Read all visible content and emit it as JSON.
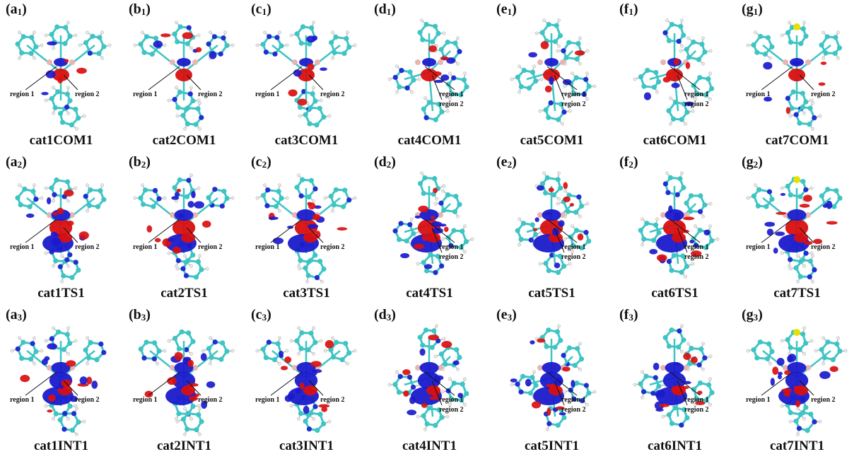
{
  "panels": [
    {
      "letter": "a",
      "sub": "1",
      "caption": "cat1COM1",
      "regions": [
        "region 1",
        "region 2"
      ]
    },
    {
      "letter": "b",
      "sub": "1",
      "caption": "cat2COM1",
      "regions": [
        "region 1",
        "region 2"
      ]
    },
    {
      "letter": "c",
      "sub": "1",
      "caption": "cat3COM1",
      "regions": [
        "region 1",
        "region 2"
      ]
    },
    {
      "letter": "d",
      "sub": "1",
      "caption": "cat4COM1",
      "regions": [
        "region 1",
        "region 2"
      ]
    },
    {
      "letter": "e",
      "sub": "1",
      "caption": "cat5COM1",
      "regions": [
        "region 1",
        "region 2"
      ]
    },
    {
      "letter": "f",
      "sub": "1",
      "caption": "cat6COM1",
      "regions": [
        "region 1",
        "region 2"
      ]
    },
    {
      "letter": "g",
      "sub": "1",
      "caption": "cat7COM1",
      "regions": [
        "region 1",
        "region 2"
      ]
    },
    {
      "letter": "a",
      "sub": "2",
      "caption": "cat1TS1",
      "regions": [
        "region 1",
        "region 2"
      ]
    },
    {
      "letter": "b",
      "sub": "2",
      "caption": "cat2TS1",
      "regions": [
        "region 1",
        "region 2"
      ]
    },
    {
      "letter": "c",
      "sub": "2",
      "caption": "cat3TS1",
      "regions": [
        "region 1",
        "region 2"
      ]
    },
    {
      "letter": "d",
      "sub": "2",
      "caption": "cat4TS1",
      "regions": [
        "region 1",
        "region 2"
      ]
    },
    {
      "letter": "e",
      "sub": "2",
      "caption": "cat5TS1",
      "regions": [
        "region 1",
        "region 2"
      ]
    },
    {
      "letter": "f",
      "sub": "2",
      "caption": "cat6TS1",
      "regions": [
        "region 1",
        "region 2"
      ]
    },
    {
      "letter": "g",
      "sub": "2",
      "caption": "cat7TS1",
      "regions": [
        "region 1",
        "region 2"
      ]
    },
    {
      "letter": "a",
      "sub": "3",
      "caption": "cat1INT1",
      "regions": [
        "region 1",
        "region 2"
      ]
    },
    {
      "letter": "b",
      "sub": "3",
      "caption": "cat2INT1",
      "regions": [
        "region 1",
        "region 2"
      ]
    },
    {
      "letter": "c",
      "sub": "3",
      "caption": "cat3INT1",
      "regions": [
        "region 1",
        "region 2"
      ]
    },
    {
      "letter": "d",
      "sub": "3",
      "caption": "cat4INT1",
      "regions": [
        "region 1",
        "region 2"
      ]
    },
    {
      "letter": "e",
      "sub": "3",
      "caption": "cat5INT1",
      "regions": [
        "region 1",
        "region 2"
      ]
    },
    {
      "letter": "f",
      "sub": "3",
      "caption": "cat6INT1",
      "regions": [
        "region 1",
        "region 2"
      ]
    },
    {
      "letter": "g",
      "sub": "3",
      "caption": "cat7INT1",
      "regions": [
        "region 1",
        "region 2"
      ]
    }
  ],
  "colors": {
    "carbon": "#3fc4c4",
    "hydrogen": "#e8e8e8",
    "nitrogen": "#1f2fd0",
    "boron": "#e8b5b5",
    "sulfur": "#e8e000",
    "lobe_positive": "#d90f0f",
    "lobe_negative": "#1a1acc"
  }
}
